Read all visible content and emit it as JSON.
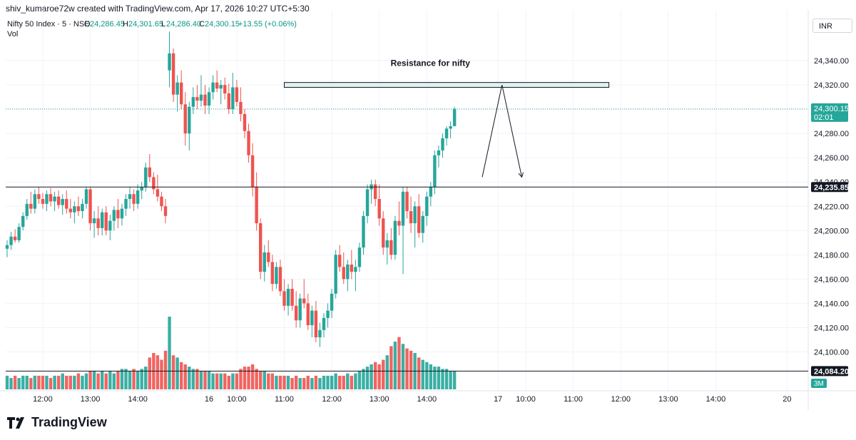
{
  "header": {
    "attribution": "shiv_kumaroe72w created with TradingView.com, Apr 17, 2026 10:27 UTC+5:30"
  },
  "legend": {
    "symbol": "Nifty 50 Index · 5 · NSE",
    "open_label": "O",
    "open_value": "24,286.45",
    "high_label": "H",
    "high_value": "24,301.65",
    "low_label": "L",
    "low_value": "24,286.40",
    "close_label": "C",
    "close_value": "24,300.15",
    "change": "+13.55 (+0.06%)",
    "volume_label": "Vol"
  },
  "currency": "INR",
  "footer": {
    "brand": "TradingView"
  },
  "colors": {
    "up": "#26a69a",
    "down": "#ef5350",
    "vol_up": "#26a69a",
    "vol_down": "#ef5350",
    "grid": "#f0f3fa",
    "price_line": "#26a69a",
    "hline": "#131722",
    "zone_fill": "#e0f2f1",
    "zone_border": "#131722"
  },
  "chart_data": {
    "type": "candlestick",
    "title": "",
    "y_axis": {
      "range": [
        24076,
        24364
      ],
      "ticks": [
        24100,
        24120,
        24140,
        24160,
        24180,
        24200,
        24220,
        24240,
        24260,
        24280,
        24300,
        24320,
        24340
      ]
    },
    "x_axis": {
      "ticks": [
        {
          "label": "12:00",
          "bar": 9
        },
        {
          "label": "13:00",
          "bar": 21
        },
        {
          "label": "14:00",
          "bar": 33
        },
        {
          "label": "16",
          "bar": 51
        },
        {
          "label": "10:00",
          "bar": 58
        },
        {
          "label": "11:00",
          "bar": 70
        },
        {
          "label": "12:00",
          "bar": 82
        },
        {
          "label": "13:00",
          "bar": 94
        },
        {
          "label": "14:00",
          "bar": 106
        },
        {
          "label": "17",
          "bar": 124
        },
        {
          "label": "10:00",
          "bar": 131
        },
        {
          "label": "11:00",
          "bar": 143
        },
        {
          "label": "12:00",
          "bar": 155
        },
        {
          "label": "13:00",
          "bar": 167
        },
        {
          "label": "14:00",
          "bar": 179
        },
        {
          "label": "20",
          "bar": 197
        }
      ]
    },
    "candles_ohlc": [
      [
        24185,
        24192,
        24178,
        24188
      ],
      [
        24188,
        24199,
        24184,
        24195
      ],
      [
        24195,
        24201,
        24190,
        24192
      ],
      [
        24192,
        24206,
        24190,
        24203
      ],
      [
        24203,
        24215,
        24200,
        24212
      ],
      [
        24212,
        24226,
        24209,
        24222
      ],
      [
        24222,
        24232,
        24214,
        24218
      ],
      [
        24218,
        24234,
        24214,
        24230
      ],
      [
        24230,
        24236,
        24222,
        24226
      ],
      [
        24226,
        24231,
        24218,
        24222
      ],
      [
        24222,
        24233,
        24216,
        24230
      ],
      [
        24230,
        24235,
        24220,
        24224
      ],
      [
        24224,
        24232,
        24216,
        24228
      ],
      [
        24228,
        24233,
        24218,
        24221
      ],
      [
        24221,
        24230,
        24213,
        24226
      ],
      [
        24226,
        24233,
        24214,
        24218
      ],
      [
        24218,
        24226,
        24210,
        24215
      ],
      [
        24215,
        24224,
        24206,
        24220
      ],
      [
        24220,
        24228,
        24212,
        24216
      ],
      [
        24216,
        24226,
        24210,
        24222
      ],
      [
        24222,
        24236,
        24218,
        24234
      ],
      [
        24234,
        24236,
        24200,
        24206
      ],
      [
        24206,
        24216,
        24194,
        24210
      ],
      [
        24210,
        24220,
        24196,
        24202
      ],
      [
        24202,
        24218,
        24196,
        24215
      ],
      [
        24215,
        24220,
        24196,
        24200
      ],
      [
        24200,
        24213,
        24192,
        24208
      ],
      [
        24208,
        24220,
        24200,
        24217
      ],
      [
        24217,
        24226,
        24202,
        24210
      ],
      [
        24210,
        24222,
        24204,
        24218
      ],
      [
        24218,
        24230,
        24212,
        24226
      ],
      [
        24226,
        24236,
        24218,
        24230
      ],
      [
        24230,
        24234,
        24216,
        24222
      ],
      [
        24222,
        24238,
        24218,
        24233
      ],
      [
        24233,
        24240,
        24226,
        24236
      ],
      [
        24236,
        24256,
        24232,
        24252
      ],
      [
        24252,
        24263,
        24240,
        24244
      ],
      [
        24244,
        24248,
        24230,
        24234
      ],
      [
        24234,
        24246,
        24224,
        24228
      ],
      [
        24228,
        24232,
        24216,
        24220
      ],
      [
        24220,
        24226,
        24206,
        24212
      ],
      [
        24332,
        24364,
        24318,
        24346
      ],
      [
        24346,
        24350,
        24306,
        24312
      ],
      [
        24312,
        24328,
        24298,
        24322
      ],
      [
        24322,
        24332,
        24300,
        24304
      ],
      [
        24304,
        24314,
        24270,
        24280
      ],
      [
        24280,
        24306,
        24266,
        24302
      ],
      [
        24302,
        24318,
        24296,
        24310
      ],
      [
        24310,
        24320,
        24300,
        24307
      ],
      [
        24307,
        24328,
        24302,
        24312
      ],
      [
        24312,
        24320,
        24296,
        24303
      ],
      [
        24303,
        24318,
        24296,
        24314
      ],
      [
        24314,
        24328,
        24308,
        24322
      ],
      [
        24322,
        24332,
        24314,
        24317
      ],
      [
        24317,
        24324,
        24304,
        24320
      ],
      [
        24320,
        24326,
        24308,
        24313
      ],
      [
        24313,
        24321,
        24296,
        24300
      ],
      [
        24300,
        24330,
        24296,
        24318
      ],
      [
        24318,
        24324,
        24302,
        24306
      ],
      [
        24306,
        24318,
        24290,
        24296
      ],
      [
        24296,
        24300,
        24276,
        24282
      ],
      [
        24282,
        24288,
        24256,
        24262
      ],
      [
        24262,
        24272,
        24228,
        24236
      ],
      [
        24236,
        24248,
        24200,
        24206
      ],
      [
        24206,
        24210,
        24160,
        24166
      ],
      [
        24166,
        24188,
        24158,
        24182
      ],
      [
        24182,
        24192,
        24170,
        24174
      ],
      [
        24174,
        24180,
        24150,
        24156
      ],
      [
        24156,
        24174,
        24152,
        24170
      ],
      [
        24170,
        24176,
        24146,
        24150
      ],
      [
        24150,
        24160,
        24134,
        24138
      ],
      [
        24138,
        24156,
        24130,
        24152
      ],
      [
        24152,
        24160,
        24134,
        24138
      ],
      [
        24138,
        24150,
        24120,
        24126
      ],
      [
        24126,
        24148,
        24120,
        24144
      ],
      [
        24144,
        24160,
        24136,
        24140
      ],
      [
        24140,
        24148,
        24118,
        24122
      ],
      [
        24122,
        24138,
        24112,
        24134
      ],
      [
        24134,
        24142,
        24108,
        24112
      ],
      [
        24112,
        24124,
        24104,
        24118
      ],
      [
        24118,
        24132,
        24112,
        24128
      ],
      [
        24128,
        24140,
        24120,
        24134
      ],
      [
        24134,
        24152,
        24128,
        24148
      ],
      [
        24148,
        24184,
        24144,
        24180
      ],
      [
        24180,
        24188,
        24166,
        24170
      ],
      [
        24170,
        24182,
        24156,
        24160
      ],
      [
        24160,
        24176,
        24150,
        24172
      ],
      [
        24172,
        24184,
        24160,
        24166
      ],
      [
        24166,
        24176,
        24150,
        24170
      ],
      [
        24170,
        24190,
        24166,
        24186
      ],
      [
        24186,
        24216,
        24180,
        24212
      ],
      [
        24212,
        24238,
        24206,
        24234
      ],
      [
        24234,
        24242,
        24222,
        24238
      ],
      [
        24238,
        24242,
        24220,
        24226
      ],
      [
        24226,
        24238,
        24204,
        24210
      ],
      [
        24210,
        24216,
        24180,
        24186
      ],
      [
        24186,
        24198,
        24172,
        24192
      ],
      [
        24192,
        24202,
        24176,
        24180
      ],
      [
        24180,
        24212,
        24176,
        24208
      ],
      [
        24208,
        24224,
        24196,
        24204
      ],
      [
        24204,
        24236,
        24164,
        24232
      ],
      [
        24232,
        24236,
        24210,
        24216
      ],
      [
        24216,
        24228,
        24198,
        24206
      ],
      [
        24206,
        24224,
        24186,
        24220
      ],
      [
        24220,
        24230,
        24194,
        24198
      ],
      [
        24198,
        24216,
        24190,
        24212
      ],
      [
        24212,
        24232,
        24204,
        24228
      ],
      [
        24228,
        24240,
        24220,
        24236
      ],
      [
        24236,
        24266,
        24230,
        24262
      ],
      [
        24262,
        24270,
        24252,
        24266
      ],
      [
        24266,
        24280,
        24260,
        24276
      ],
      [
        24276,
        24286,
        24270,
        24284
      ],
      [
        24284,
        24290,
        24276,
        24286
      ],
      [
        24286,
        24302,
        24286,
        24300
      ]
    ],
    "volume": [
      6,
      5,
      6,
      5,
      6,
      6,
      5,
      6,
      6,
      6,
      6,
      5,
      6,
      6,
      7,
      6,
      6,
      6,
      7,
      6,
      7,
      8,
      8,
      7,
      8,
      7,
      8,
      7,
      8,
      9,
      9,
      8,
      9,
      8,
      9,
      10,
      14,
      16,
      15,
      13,
      17,
      32,
      15,
      14,
      12,
      11,
      10,
      9,
      9,
      8,
      8,
      8,
      7,
      7,
      7,
      7,
      6,
      7,
      7,
      9,
      10,
      10,
      11,
      9,
      8,
      8,
      7,
      7,
      6,
      6,
      6,
      6,
      5,
      6,
      5,
      5,
      6,
      5,
      6,
      5,
      6,
      6,
      6,
      7,
      6,
      6,
      7,
      6,
      7,
      8,
      9,
      10,
      11,
      12,
      11,
      13,
      15,
      19,
      21,
      23,
      20,
      18,
      17,
      16,
      14,
      13,
      12,
      11,
      10,
      10,
      9,
      9,
      8,
      8
    ],
    "vol_max": 32,
    "dividers": [
      41
    ],
    "annotations": [
      {
        "type": "zone",
        "label": "Resistance for nifty",
        "top": 24322,
        "bottom": 24318,
        "start_bar": 70,
        "end_bar": 152
      },
      {
        "type": "hline",
        "value": 24235.85,
        "label": "24,235.85"
      },
      {
        "type": "hline",
        "value": 24084.2,
        "label": "24,084.20"
      },
      {
        "type": "path",
        "points": [
          {
            "bar": 120,
            "price": 24244
          },
          {
            "bar": 125,
            "price": 24320
          },
          {
            "bar": 130,
            "price": 24244
          }
        ]
      }
    ],
    "last_price": {
      "value": "24,300.15",
      "time": "02:01",
      "price": 24300.15
    },
    "vol_badge": "3M"
  }
}
